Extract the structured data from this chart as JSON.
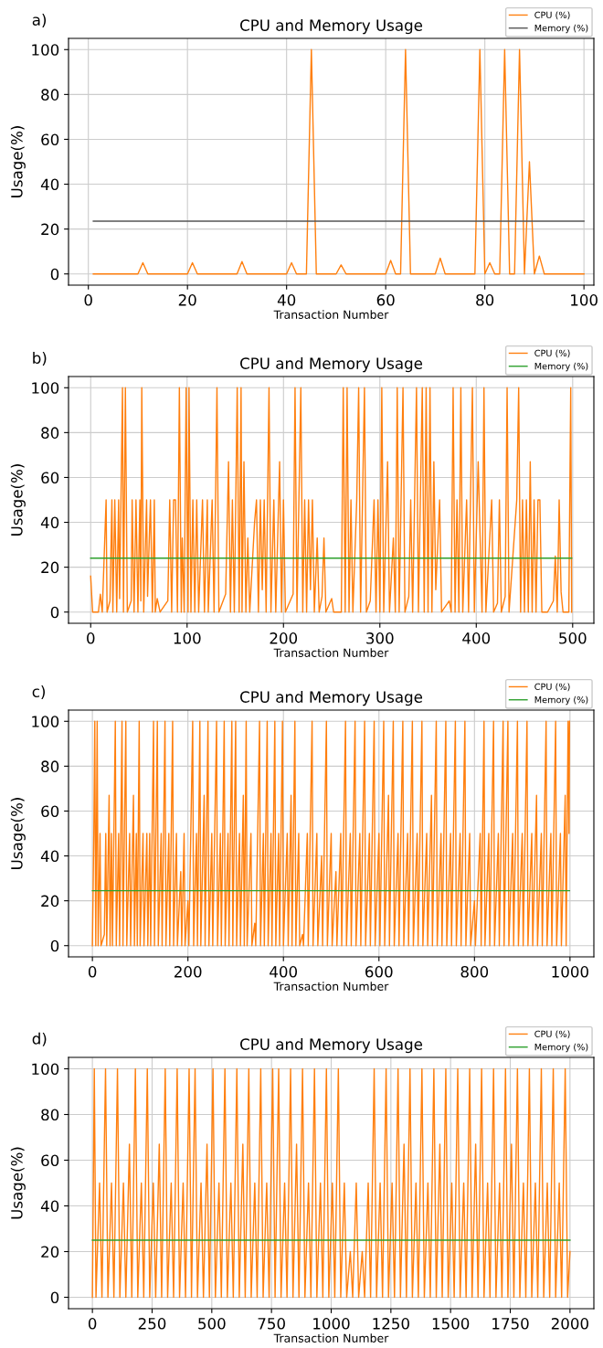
{
  "chart_data": [
    {
      "type": "line",
      "title": "CPU and Memory Usage",
      "xlabel": "Transaction Number",
      "ylabel": "Usage(%)",
      "annotations": [
        "a)"
      ],
      "xlim": [
        -4,
        102
      ],
      "ylim": [
        -5,
        105
      ],
      "xticks": [
        0,
        20,
        40,
        60,
        80,
        100
      ],
      "yticks": [
        0,
        20,
        40,
        60,
        80,
        100
      ],
      "grid": true,
      "legend": "top right",
      "series": [
        {
          "name": "CPU (%)",
          "color": "#ff7f0e",
          "x": [
            1,
            10,
            11,
            12,
            20,
            21,
            22,
            30,
            31,
            32,
            40,
            41,
            42,
            44,
            45,
            46,
            50,
            51,
            52,
            60,
            61,
            62,
            63,
            64,
            65,
            70,
            71,
            72,
            78,
            79,
            80,
            81,
            82,
            83,
            84,
            85,
            86,
            87,
            88,
            89,
            90,
            91,
            92,
            100
          ],
          "values": [
            0,
            0,
            5,
            0,
            0,
            5,
            0,
            0,
            5.5,
            0,
            0,
            5,
            0,
            0,
            100,
            0,
            0,
            4,
            0,
            0,
            6,
            0,
            0,
            100,
            0,
            0,
            7,
            0,
            0,
            100,
            0,
            5,
            0,
            0,
            100,
            0,
            0,
            100,
            0,
            50,
            0,
            8,
            0,
            0
          ]
        },
        {
          "name": "Memory (%)",
          "color": "#555555",
          "x": [
            1,
            100
          ],
          "values": [
            23.5,
            23.5
          ]
        }
      ]
    },
    {
      "type": "line",
      "title": "CPU and Memory Usage",
      "xlabel": "Transaction Number",
      "ylabel": "Usage(%)",
      "annotations": [
        "b)"
      ],
      "xlim": [
        -23,
        522
      ],
      "ylim": [
        -5,
        105
      ],
      "xticks": [
        0,
        100,
        200,
        300,
        400,
        500
      ],
      "yticks": [
        0,
        20,
        40,
        60,
        80,
        100
      ],
      "grid": true,
      "legend": "top right",
      "series": [
        {
          "name": "CPU (%)",
          "color": "#ff7f0e",
          "x": [
            0,
            2,
            8,
            10,
            12,
            16,
            17,
            20,
            22,
            23,
            25,
            27,
            29,
            30,
            33,
            34,
            36,
            38,
            42,
            43,
            45,
            47,
            49,
            51,
            52,
            53,
            55,
            58,
            59,
            62,
            64,
            66,
            67,
            69,
            72,
            80,
            82,
            84,
            86,
            88,
            90,
            92,
            94,
            95,
            97,
            99,
            101,
            102,
            104,
            106,
            108,
            110,
            112,
            116,
            118,
            121,
            122,
            126,
            128,
            131,
            133,
            140,
            143,
            145,
            147,
            149,
            152,
            154,
            156,
            157,
            159,
            161,
            163,
            165,
            170,
            172,
            174,
            176,
            178,
            180,
            182,
            185,
            187,
            190,
            192,
            196,
            198,
            200,
            202,
            210,
            212,
            214,
            218,
            220,
            222,
            224,
            226,
            228,
            230,
            232,
            235,
            237,
            240,
            242,
            244,
            250,
            252,
            260,
            262,
            264,
            266,
            268,
            270,
            272,
            276,
            278,
            280,
            284,
            286,
            290,
            294,
            296,
            298,
            300,
            302,
            304,
            308,
            310,
            314,
            316,
            318,
            320,
            324,
            326,
            330,
            332,
            334,
            338,
            340,
            344,
            346,
            348,
            350,
            352,
            354,
            356,
            358,
            362,
            364,
            372,
            374,
            376,
            378,
            380,
            382,
            384,
            386,
            390,
            392,
            396,
            398,
            402,
            404,
            406,
            408,
            410,
            416,
            418,
            422,
            424,
            426,
            430,
            432,
            434,
            442,
            444,
            446,
            448,
            450,
            452,
            454,
            456,
            458,
            460,
            462,
            464,
            466,
            468,
            474,
            480,
            482,
            484,
            486,
            488,
            490,
            496,
            498,
            499
          ],
          "values": [
            16,
            0,
            0,
            8,
            0,
            50,
            0,
            5,
            50,
            0,
            50,
            0,
            50,
            6,
            100,
            0,
            100,
            0,
            5,
            50,
            0,
            50,
            0,
            50,
            5,
            100,
            0,
            50,
            7,
            50,
            0,
            50,
            0,
            6,
            0,
            5,
            50,
            0,
            50,
            50,
            0,
            100,
            0,
            33,
            0,
            100,
            0,
            100,
            0,
            50,
            0,
            50,
            0,
            50,
            0,
            50,
            0,
            50,
            0,
            100,
            0,
            8,
            67,
            0,
            50,
            0,
            100,
            0,
            100,
            0,
            67,
            0,
            33,
            0,
            40,
            50,
            0,
            50,
            10,
            50,
            0,
            100,
            0,
            50,
            0,
            67,
            0,
            50,
            0,
            8,
            100,
            0,
            100,
            0,
            50,
            0,
            50,
            10,
            50,
            0,
            33,
            0,
            7,
            33,
            0,
            6,
            0,
            0,
            100,
            0,
            100,
            0,
            50,
            0,
            50,
            100,
            0,
            100,
            0,
            5,
            50,
            0,
            50,
            0,
            100,
            0,
            67,
            0,
            33,
            0,
            100,
            0,
            100,
            0,
            7,
            50,
            0,
            100,
            0,
            100,
            0,
            100,
            0,
            100,
            0,
            67,
            10,
            50,
            0,
            5,
            0,
            100,
            0,
            50,
            0,
            100,
            0,
            50,
            0,
            100,
            0,
            67,
            33,
            0,
            100,
            0,
            50,
            0,
            4,
            50,
            0,
            7,
            100,
            0,
            50,
            100,
            0,
            50,
            0,
            50,
            0,
            67,
            0,
            50,
            0,
            50,
            50,
            0,
            0,
            5,
            25,
            0,
            50,
            9,
            0,
            0,
            100,
            0
          ]
        },
        {
          "name": "Memory (%)",
          "color": "#2ca02c",
          "x": [
            0,
            499
          ],
          "values": [
            24,
            24
          ]
        }
      ]
    },
    {
      "type": "line",
      "title": "CPU and Memory Usage",
      "xlabel": "Transaction Number",
      "ylabel": "Usage(%)",
      "annotations": [
        "c)"
      ],
      "xlim": [
        -50,
        1050
      ],
      "ylim": [
        -5,
        105
      ],
      "xticks": [
        0,
        200,
        400,
        600,
        800,
        1000
      ],
      "yticks": [
        0,
        20,
        40,
        60,
        80,
        100
      ],
      "grid": true,
      "legend": "top right",
      "series": [
        {
          "name": "CPU (%)",
          "color": "#ff7f0e",
          "x": [
            0,
            3,
            5,
            7,
            10,
            12,
            16,
            18,
            25,
            28,
            30,
            35,
            37,
            40,
            42,
            48,
            50,
            55,
            57,
            62,
            64,
            70,
            72,
            78,
            80,
            86,
            88,
            92,
            94,
            98,
            100,
            106,
            108,
            114,
            116,
            120,
            122,
            128,
            130,
            136,
            138,
            144,
            146,
            152,
            154,
            160,
            162,
            168,
            170,
            176,
            178,
            185,
            187,
            192,
            194,
            200,
            202,
            210,
            212,
            218,
            220,
            225,
            227,
            234,
            236,
            242,
            244,
            250,
            252,
            260,
            262,
            268,
            270,
            276,
            278,
            284,
            286,
            292,
            294,
            300,
            302,
            308,
            310,
            316,
            318,
            322,
            324,
            332,
            334,
            340,
            342,
            350,
            352,
            358,
            360,
            366,
            368,
            374,
            376,
            382,
            384,
            390,
            392,
            398,
            400,
            408,
            410,
            416,
            418,
            424,
            426,
            432,
            434,
            440,
            442,
            450,
            452,
            460,
            462,
            470,
            472,
            480,
            482,
            490,
            492,
            500,
            502,
            510,
            512,
            520,
            522,
            530,
            532,
            540,
            542,
            550,
            552,
            560,
            562,
            570,
            572,
            580,
            582,
            590,
            592,
            600,
            602,
            610,
            612,
            620,
            622,
            630,
            632,
            640,
            642,
            650,
            652,
            660,
            662,
            670,
            672,
            680,
            682,
            690,
            692,
            700,
            702,
            710,
            712,
            720,
            722,
            730,
            732,
            740,
            742,
            750,
            752,
            760,
            762,
            770,
            772,
            780,
            782,
            790,
            792,
            800,
            802,
            812,
            814,
            820,
            822,
            830,
            832,
            840,
            842,
            850,
            852,
            860,
            862,
            870,
            872,
            880,
            882,
            890,
            892,
            900,
            902,
            910,
            912,
            920,
            922,
            930,
            932,
            940,
            942,
            950,
            952,
            960,
            962,
            970,
            972,
            980,
            982,
            990,
            992,
            996,
            998,
            999
          ],
          "values": [
            0,
            50,
            100,
            0,
            100,
            0,
            50,
            0,
            5,
            50,
            0,
            67,
            0,
            50,
            0,
            100,
            0,
            50,
            0,
            100,
            0,
            100,
            0,
            50,
            0,
            67,
            0,
            50,
            0,
            100,
            0,
            50,
            0,
            50,
            0,
            50,
            0,
            100,
            0,
            100,
            0,
            50,
            0,
            100,
            0,
            50,
            0,
            100,
            0,
            50,
            0,
            33,
            0,
            50,
            0,
            20,
            0,
            100,
            0,
            50,
            0,
            100,
            0,
            67,
            0,
            100,
            0,
            50,
            0,
            100,
            0,
            50,
            0,
            100,
            0,
            50,
            0,
            100,
            0,
            100,
            0,
            50,
            0,
            67,
            0,
            100,
            0,
            50,
            0,
            10,
            0,
            100,
            0,
            50,
            0,
            100,
            0,
            50,
            0,
            100,
            0,
            50,
            0,
            100,
            0,
            50,
            0,
            67,
            0,
            100,
            0,
            50,
            0,
            5,
            0,
            50,
            0,
            100,
            0,
            50,
            0,
            40,
            0,
            100,
            0,
            50,
            0,
            33,
            0,
            50,
            0,
            100,
            0,
            50,
            0,
            100,
            0,
            50,
            0,
            100,
            0,
            50,
            0,
            100,
            0,
            50,
            0,
            100,
            0,
            67,
            0,
            100,
            0,
            50,
            0,
            100,
            0,
            50,
            0,
            100,
            0,
            50,
            0,
            100,
            0,
            50,
            0,
            67,
            0,
            100,
            0,
            50,
            0,
            100,
            0,
            50,
            0,
            100,
            0,
            50,
            0,
            100,
            0,
            50,
            0,
            20,
            0,
            50,
            0,
            100,
            0,
            50,
            0,
            100,
            0,
            50,
            0,
            100,
            0,
            100,
            0,
            50,
            0,
            100,
            0,
            50,
            0,
            100,
            0,
            50,
            0,
            67,
            0,
            50,
            0,
            100,
            0,
            50,
            0,
            100,
            0,
            50,
            0,
            67,
            0,
            100,
            50,
            100
          ]
        },
        {
          "name": "Memory (%)",
          "color": "#2ca02c",
          "x": [
            0,
            999
          ],
          "values": [
            24.5,
            24.5
          ]
        }
      ]
    },
    {
      "type": "line",
      "title": "CPU and Memory Usage",
      "xlabel": "Transaction Number",
      "ylabel": "Usage(%)",
      "annotations": [
        "d)"
      ],
      "xlim": [
        -100,
        2100
      ],
      "ylim": [
        -5,
        105
      ],
      "xticks": [
        0,
        250,
        500,
        750,
        1000,
        1250,
        1500,
        1750,
        2000
      ],
      "yticks": [
        0,
        20,
        40,
        60,
        80,
        100
      ],
      "grid": true,
      "legend": "top right",
      "series": [
        {
          "name": "CPU (%)",
          "color": "#ff7f0e",
          "x": [
            0,
            8,
            15,
            30,
            40,
            55,
            65,
            80,
            90,
            105,
            115,
            130,
            140,
            155,
            165,
            180,
            190,
            205,
            215,
            230,
            240,
            255,
            265,
            280,
            290,
            305,
            315,
            330,
            340,
            355,
            365,
            380,
            390,
            405,
            415,
            430,
            440,
            455,
            465,
            480,
            490,
            505,
            515,
            530,
            540,
            555,
            565,
            580,
            590,
            605,
            615,
            630,
            640,
            655,
            665,
            680,
            690,
            705,
            715,
            730,
            740,
            755,
            765,
            780,
            790,
            805,
            815,
            830,
            840,
            855,
            865,
            880,
            890,
            905,
            915,
            930,
            940,
            955,
            965,
            980,
            990,
            1005,
            1015,
            1030,
            1040,
            1055,
            1065,
            1080,
            1090,
            1105,
            1115,
            1130,
            1140,
            1155,
            1165,
            1180,
            1190,
            1205,
            1215,
            1230,
            1240,
            1255,
            1265,
            1280,
            1290,
            1305,
            1315,
            1330,
            1340,
            1355,
            1365,
            1380,
            1390,
            1405,
            1415,
            1430,
            1440,
            1455,
            1465,
            1480,
            1490,
            1505,
            1515,
            1530,
            1540,
            1555,
            1565,
            1580,
            1590,
            1605,
            1615,
            1630,
            1640,
            1655,
            1665,
            1680,
            1690,
            1705,
            1715,
            1730,
            1740,
            1755,
            1765,
            1780,
            1790,
            1805,
            1815,
            1830,
            1840,
            1855,
            1865,
            1880,
            1890,
            1905,
            1915,
            1930,
            1940,
            1955,
            1965,
            1980,
            1990,
            2000
          ],
          "values": [
            0,
            100,
            0,
            50,
            0,
            100,
            0,
            50,
            0,
            100,
            0,
            50,
            0,
            67,
            0,
            100,
            0,
            50,
            0,
            100,
            0,
            50,
            0,
            67,
            0,
            100,
            0,
            50,
            0,
            100,
            0,
            50,
            0,
            100,
            0,
            100,
            0,
            50,
            0,
            67,
            0,
            100,
            0,
            50,
            0,
            100,
            0,
            50,
            0,
            100,
            0,
            67,
            0,
            100,
            0,
            50,
            0,
            100,
            0,
            50,
            0,
            100,
            0,
            100,
            0,
            50,
            0,
            100,
            0,
            67,
            0,
            100,
            0,
            50,
            0,
            100,
            0,
            50,
            0,
            100,
            0,
            50,
            0,
            100,
            0,
            50,
            0,
            20,
            0,
            50,
            0,
            20,
            0,
            50,
            0,
            100,
            0,
            50,
            0,
            100,
            0,
            50,
            0,
            100,
            0,
            67,
            0,
            100,
            0,
            50,
            0,
            100,
            0,
            50,
            0,
            100,
            0,
            67,
            0,
            100,
            0,
            50,
            0,
            100,
            0,
            50,
            0,
            100,
            0,
            67,
            0,
            100,
            0,
            50,
            0,
            100,
            0,
            50,
            0,
            100,
            0,
            67,
            0,
            100,
            0,
            50,
            0,
            100,
            0,
            50,
            0,
            100,
            0,
            50,
            0,
            100,
            0,
            50,
            0,
            100,
            0,
            20
          ]
        },
        {
          "name": "Memory (%)",
          "color": "#2ca02c",
          "x": [
            0,
            2000
          ],
          "values": [
            25,
            25
          ]
        }
      ]
    }
  ]
}
